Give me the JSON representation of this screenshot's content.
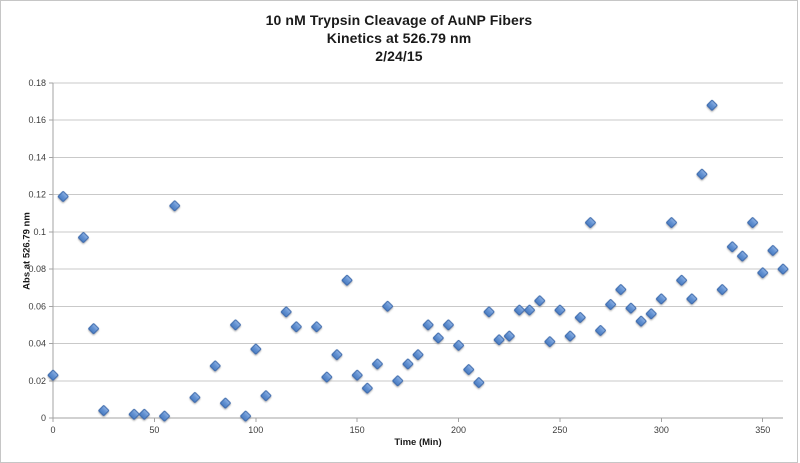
{
  "chart": {
    "title_line1": "10 nM Trypsin Cleavage of AuNP Fibers",
    "title_line2": "Kinetics at 526.79 nm",
    "title_line3": "2/24/15",
    "xlabel": "Time (Min)",
    "ylabel": "Abs at 526.79 nm"
  },
  "chart_data": {
    "type": "scatter",
    "title": "10 nM Trypsin Cleavage of AuNP Fibers Kinetics at 526.79 nm 2/24/15",
    "xlabel": "Time (Min)",
    "ylabel": "Abs at 526.79 nm",
    "xlim": [
      0,
      360
    ],
    "ylim": [
      0,
      0.18
    ],
    "x_ticks": [
      0,
      50,
      100,
      150,
      200,
      250,
      300,
      350
    ],
    "y_ticks": [
      "0",
      "0.02",
      "0.04",
      "0.06",
      "0.08",
      "0.1",
      "0.12",
      "0.14",
      "0.16",
      "0.18"
    ],
    "grid": "horizontal-only",
    "legend": "none",
    "marker_shape": "diamond",
    "colors": {
      "marker_fill_light": "#8fb2e4",
      "marker_fill_dark": "#4a7cc1",
      "marker_stroke": "#3a69ab",
      "gridline": "#c9c9c9",
      "axis": "#a3a3a3",
      "tick_text": "#3d3d3d"
    },
    "points": [
      [
        0,
        0.023
      ],
      [
        5,
        0.119
      ],
      [
        15,
        0.097
      ],
      [
        20,
        0.048
      ],
      [
        25,
        0.004
      ],
      [
        40,
        0.002
      ],
      [
        45,
        0.002
      ],
      [
        55,
        0.001
      ],
      [
        60,
        0.114
      ],
      [
        70,
        0.011
      ],
      [
        80,
        0.028
      ],
      [
        85,
        0.008
      ],
      [
        90,
        0.05
      ],
      [
        95,
        0.001
      ],
      [
        100,
        0.037
      ],
      [
        105,
        0.012
      ],
      [
        115,
        0.057
      ],
      [
        120,
        0.049
      ],
      [
        130,
        0.049
      ],
      [
        135,
        0.022
      ],
      [
        140,
        0.034
      ],
      [
        145,
        0.074
      ],
      [
        150,
        0.023
      ],
      [
        155,
        0.016
      ],
      [
        160,
        0.029
      ],
      [
        165,
        0.06
      ],
      [
        170,
        0.02
      ],
      [
        175,
        0.029
      ],
      [
        180,
        0.034
      ],
      [
        185,
        0.05
      ],
      [
        190,
        0.043
      ],
      [
        195,
        0.05
      ],
      [
        200,
        0.039
      ],
      [
        205,
        0.026
      ],
      [
        210,
        0.019
      ],
      [
        215,
        0.057
      ],
      [
        220,
        0.042
      ],
      [
        225,
        0.044
      ],
      [
        230,
        0.058
      ],
      [
        235,
        0.058
      ],
      [
        240,
        0.063
      ],
      [
        245,
        0.041
      ],
      [
        250,
        0.058
      ],
      [
        255,
        0.044
      ],
      [
        260,
        0.054
      ],
      [
        265,
        0.105
      ],
      [
        270,
        0.047
      ],
      [
        275,
        0.061
      ],
      [
        280,
        0.069
      ],
      [
        285,
        0.059
      ],
      [
        290,
        0.052
      ],
      [
        295,
        0.056
      ],
      [
        300,
        0.064
      ],
      [
        305,
        0.105
      ],
      [
        310,
        0.074
      ],
      [
        315,
        0.064
      ],
      [
        320,
        0.131
      ],
      [
        325,
        0.168
      ],
      [
        330,
        0.069
      ],
      [
        335,
        0.092
      ],
      [
        340,
        0.087
      ],
      [
        345,
        0.105
      ],
      [
        350,
        0.078
      ],
      [
        355,
        0.09
      ],
      [
        360,
        0.08
      ]
    ]
  }
}
